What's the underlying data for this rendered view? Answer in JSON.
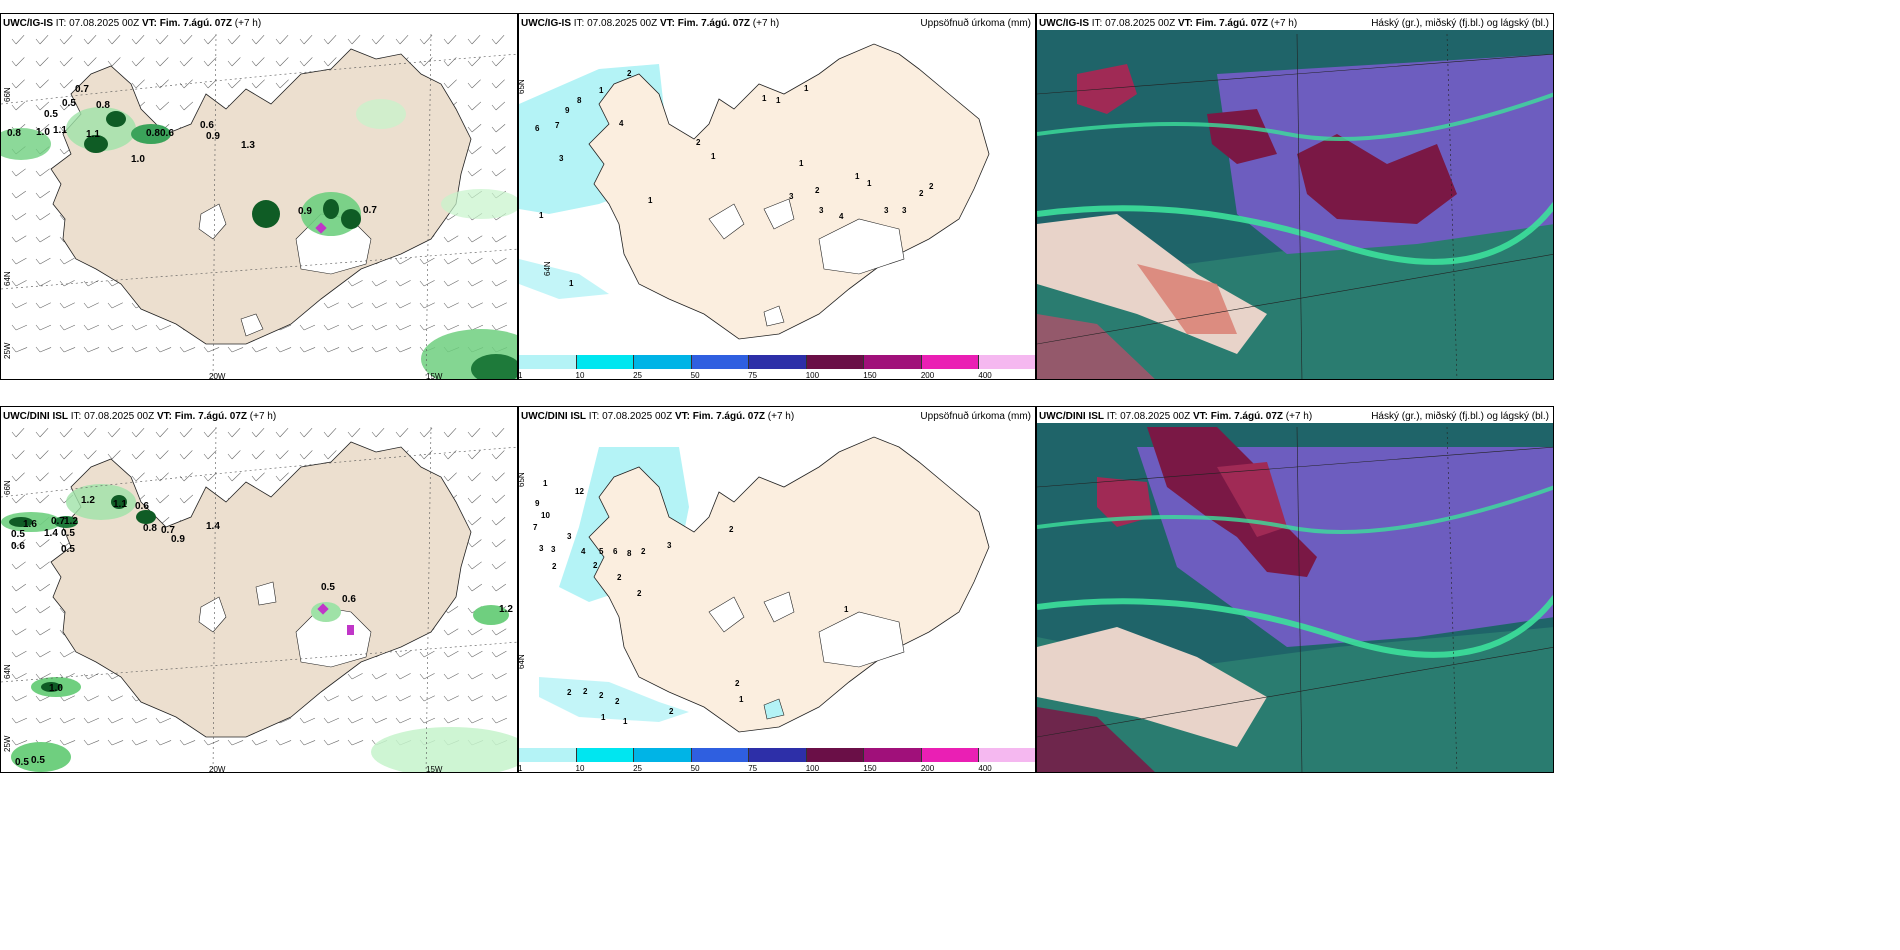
{
  "colors": {
    "land": "#ecdfcf",
    "land_accum": "#fbeedf",
    "wind_barb": "#666666",
    "precip_light": "#c6f3cb",
    "precip_mid": "#6fcf7f",
    "precip_dark": "#0f5c25",
    "cyan": "#b4f3f6",
    "cloud_high": "#7a1845",
    "cloud_mid": "#6d5dbf",
    "cloud_low": "#2a7c70",
    "cloud_green": "#3ce09b"
  },
  "rows": [
    {
      "model": "UWC/IG-IS",
      "panels": [
        {
          "title_model": "UWC/IG-IS",
          "title_it": "IT: 07.08.2025 00Z",
          "title_vt": "VT: Fim. 7.ágú. 07Z",
          "title_lead": "(+7 h)",
          "right_title": "",
          "lat_labels": [
            "66N",
            "64N",
            "25W"
          ],
          "lon_labels": [
            "20W",
            "15W"
          ],
          "values": [
            "0.7",
            "0.5",
            "0.8",
            "0.5",
            "0.8",
            "1.0",
            "1.1",
            "1.1",
            "0.6",
            "0.9",
            "1.3",
            "1.0",
            "0.9",
            "0.7",
            "0.6",
            "0.8"
          ]
        },
        {
          "title_model": "UWC/IG-IS",
          "title_it": "IT: 07.08.2025 00Z",
          "title_vt": "VT: Fim. 7.ágú. 07Z",
          "title_lead": "(+7 h)",
          "right_title": "Uppsöfnuð úrkoma (mm)",
          "lat_labels": [
            "65N",
            "64N"
          ],
          "precip_values": [
            "2",
            "1",
            "9",
            "8",
            "7",
            "6",
            "3",
            "4",
            "1",
            "1",
            "1",
            "1",
            "2",
            "1",
            "1",
            "1",
            "2",
            "3",
            "3",
            "4",
            "3",
            "3",
            "1",
            "2",
            "2",
            "1",
            "1"
          ]
        },
        {
          "title_model": "UWC/IG-IS",
          "title_it": "IT: 07.08.2025 00Z",
          "title_vt": "VT: Fim. 7.ágú. 07Z",
          "title_lead": "(+7 h)",
          "right_title": "Háský (gr.), miðský (fj.bl.) og lágský (bl.)"
        }
      ]
    },
    {
      "model": "UWC/DINI ISL",
      "panels": [
        {
          "title_model": "UWC/DINI ISL",
          "title_it": "IT: 07.08.2025 00Z",
          "title_vt": "VT: Fim. 7.ágú. 07Z",
          "title_lead": "(+7 h)",
          "right_title": "",
          "lat_labels": [
            "66N",
            "64N",
            "25W"
          ],
          "lon_labels": [
            "20W",
            "15W"
          ],
          "values": [
            "1.2",
            "1.1",
            "0.6",
            "1.6",
            "0.5",
            "0.6",
            "0.7",
            "1.2",
            "1.4",
            "0.5",
            "0.5",
            "0.8",
            "0.7",
            "0.9",
            "1.4",
            "0.5",
            "0.6",
            "1.2",
            "1.0",
            "0.5",
            "0.5"
          ]
        },
        {
          "title_model": "UWC/DINI ISL",
          "title_it": "IT: 07.08.2025 00Z",
          "title_vt": "VT: Fim. 7.ágú. 07Z",
          "title_lead": "(+7 h)",
          "right_title": "Uppsöfnuð úrkoma (mm)",
          "lat_labels": [
            "65N",
            "64N"
          ],
          "precip_values": [
            "1",
            "12",
            "9",
            "10",
            "7",
            "3",
            "3",
            "2",
            "3",
            "4",
            "5",
            "6",
            "8",
            "2",
            "3",
            "2",
            "2",
            "2",
            "1",
            "2",
            "2",
            "2",
            "2",
            "2",
            "1",
            "1",
            "2",
            "1",
            "2"
          ]
        },
        {
          "title_model": "UWC/DINI ISL",
          "title_it": "IT: 07.08.2025 00Z",
          "title_vt": "VT: Fim. 7.ágú. 07Z",
          "title_lead": "(+7 h)",
          "right_title": "Háský (gr.), miðský (fj.bl.) og lágský (bl.)"
        }
      ]
    }
  ],
  "legend": {
    "labels": [
      "1",
      "10",
      "25",
      "50",
      "75",
      "100",
      "150",
      "200",
      "400"
    ],
    "colors": [
      "#b4f3f6",
      "#00e6f0",
      "#00b4e6",
      "#2f5fe0",
      "#2d2fa8",
      "#6a0f47",
      "#a0107a",
      "#ea1fb4",
      "#f5b8f0"
    ]
  }
}
